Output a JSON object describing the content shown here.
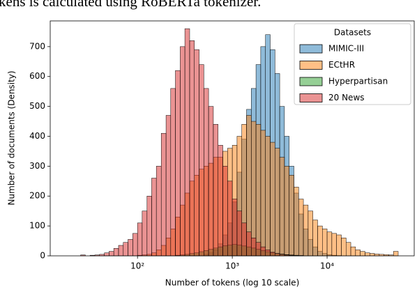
{
  "text_above": "kens is calculated using RoBERTa tokenizer.",
  "chart_data": {
    "type": "histogram",
    "x_label": "Number of tokens (log 10 scale)",
    "y_label": "Number of documents (Density)",
    "x_log": true,
    "xlim": [
      12,
      83000
    ],
    "xticks": [
      {
        "value": 100,
        "label": "10²"
      },
      {
        "value": 1000,
        "label": "10³"
      },
      {
        "value": 10000,
        "label": "10⁴"
      }
    ],
    "ylim": [
      0,
      786
    ],
    "yticks": [
      0,
      100,
      200,
      300,
      400,
      500,
      600,
      700
    ],
    "legend_title": "Datasets",
    "legend_position": "upper-right",
    "bins": [
      25.1,
      28.2,
      31.6,
      35.5,
      39.8,
      44.7,
      50.1,
      56.2,
      63.1,
      70.8,
      79.4,
      89.1,
      100,
      112,
      126,
      141,
      158,
      178,
      200,
      224,
      251,
      282,
      316,
      355,
      398,
      447,
      501,
      562,
      631,
      708,
      794,
      891,
      1000,
      1122,
      1259,
      1413,
      1585,
      1778,
      1995,
      2239,
      2512,
      2818,
      3162,
      3548,
      3981,
      4467,
      5012,
      5623,
      6310,
      7079,
      7943,
      8913,
      10000,
      11220,
      12590,
      14130,
      15850,
      17780,
      19950,
      22390,
      25120,
      28180,
      31620,
      35480,
      39810,
      44670,
      50120,
      56230
    ],
    "series": [
      {
        "name": "MIMIC-III",
        "color": "#1f77b4",
        "values": [
          0,
          0,
          0,
          0,
          0,
          0,
          0,
          0,
          0,
          0,
          0,
          0,
          0,
          0,
          0,
          0,
          0,
          0,
          0,
          0,
          0,
          0,
          0,
          0,
          0,
          0,
          5,
          10,
          20,
          40,
          70,
          110,
          180,
          280,
          390,
          490,
          560,
          640,
          700,
          740,
          690,
          610,
          500,
          400,
          300,
          210,
          140,
          90,
          55,
          30,
          15,
          8,
          4,
          2,
          1,
          0,
          0,
          0,
          0,
          0,
          0,
          0,
          0,
          0,
          0,
          0,
          0
        ]
      },
      {
        "name": "ECtHR",
        "color": "#ff7f0e",
        "values": [
          0,
          0,
          0,
          0,
          0,
          0,
          0,
          0,
          0,
          0,
          0,
          0,
          2,
          3,
          5,
          10,
          20,
          35,
          60,
          90,
          130,
          170,
          210,
          250,
          270,
          290,
          300,
          310,
          330,
          330,
          350,
          360,
          370,
          400,
          440,
          470,
          450,
          440,
          420,
          400,
          380,
          360,
          330,
          300,
          270,
          230,
          190,
          170,
          150,
          120,
          100,
          90,
          80,
          75,
          70,
          60,
          45,
          30,
          20,
          15,
          10,
          8,
          6,
          5,
          4,
          3,
          15
        ]
      },
      {
        "name": "Hyperpartisan",
        "color": "#2ca02c",
        "values": [
          0,
          0,
          0,
          0,
          0,
          0,
          0,
          0,
          0,
          0,
          0,
          0,
          0,
          0,
          0,
          0,
          0,
          0,
          0,
          0,
          2,
          3,
          5,
          8,
          10,
          14,
          18,
          22,
          26,
          30,
          34,
          36,
          38,
          36,
          33,
          30,
          26,
          22,
          18,
          14,
          10,
          8,
          6,
          4,
          3,
          2,
          1,
          0,
          0,
          0,
          0,
          0,
          0,
          0,
          0,
          0,
          0,
          0,
          0,
          0,
          0,
          0,
          0,
          0,
          0,
          0,
          0
        ]
      },
      {
        "name": "20 News",
        "color": "#d62728",
        "values": [
          3,
          0,
          2,
          3,
          5,
          10,
          15,
          25,
          35,
          45,
          55,
          75,
          110,
          150,
          200,
          260,
          300,
          410,
          470,
          560,
          620,
          700,
          760,
          720,
          690,
          640,
          560,
          500,
          440,
          370,
          300,
          250,
          190,
          150,
          110,
          80,
          60,
          45,
          30,
          20,
          12,
          8,
          5,
          3,
          2,
          1,
          1,
          0,
          0,
          0,
          0,
          0,
          0,
          0,
          0,
          0,
          0,
          0,
          0,
          0,
          0,
          0,
          0,
          0,
          0,
          0,
          0
        ]
      }
    ]
  }
}
